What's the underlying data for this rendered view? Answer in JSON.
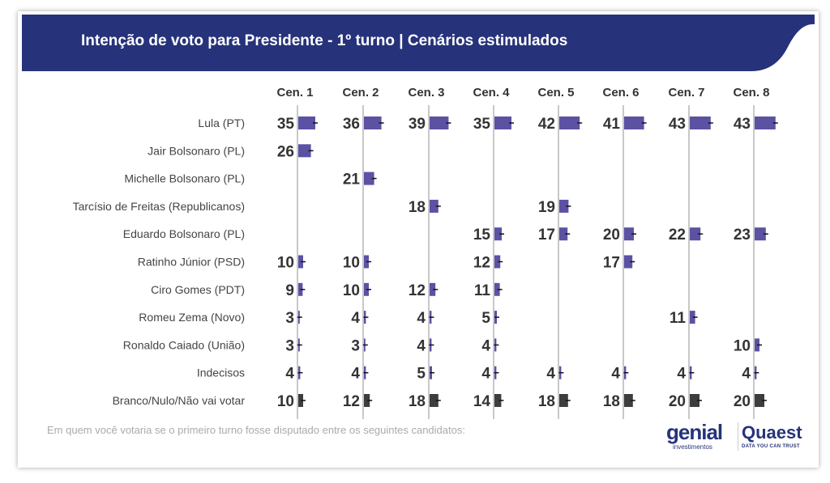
{
  "chart_data": {
    "type": "bar",
    "title": "Intenção de voto para Presidente - 1º turno | Cenários estimulados",
    "note": "Em quem você votaria se o primeiro turno fosse disputado entre os seguintes candidatos:",
    "scenarios": [
      "Cen. 1",
      "Cen. 2",
      "Cen. 3",
      "Cen. 4",
      "Cen. 5",
      "Cen. 6",
      "Cen. 7",
      "Cen. 8"
    ],
    "candidates": [
      "Lula (PT)",
      "Jair Bolsonaro (PL)",
      "Michelle Bolsonaro (PL)",
      "Tarcísio de Freitas (Republicanos)",
      "Eduardo Bolsonaro (PL)",
      "Ratinho Júnior (PSD)",
      "Ciro Gomes (PDT)",
      "Romeu Zema (Novo)",
      "Ronaldo Caiado (União)",
      "Indecisos",
      "Branco/Nulo/Não vai votar"
    ],
    "values": [
      [
        35,
        36,
        39,
        35,
        42,
        41,
        43,
        43
      ],
      [
        26,
        null,
        null,
        null,
        null,
        null,
        null,
        null
      ],
      [
        null,
        21,
        null,
        null,
        null,
        null,
        null,
        null
      ],
      [
        null,
        null,
        18,
        null,
        19,
        null,
        null,
        null
      ],
      [
        null,
        null,
        null,
        15,
        17,
        20,
        22,
        23
      ],
      [
        10,
        10,
        null,
        12,
        null,
        17,
        null,
        null
      ],
      [
        9,
        10,
        12,
        11,
        null,
        null,
        null,
        null
      ],
      [
        3,
        4,
        4,
        5,
        null,
        null,
        11,
        null
      ],
      [
        3,
        3,
        4,
        4,
        null,
        null,
        null,
        10
      ],
      [
        4,
        4,
        5,
        4,
        4,
        4,
        4,
        4
      ],
      [
        10,
        12,
        18,
        14,
        18,
        18,
        20,
        20
      ]
    ],
    "colors": {
      "candidate": "#5b52a3",
      "blank": "#3d3d3d",
      "banner": "#26337a"
    }
  },
  "logos": {
    "genial": "genial",
    "genial_sub": "investimentos",
    "quaest": "Quaest",
    "quaest_sub": "DATA YOU CAN TRUST"
  }
}
